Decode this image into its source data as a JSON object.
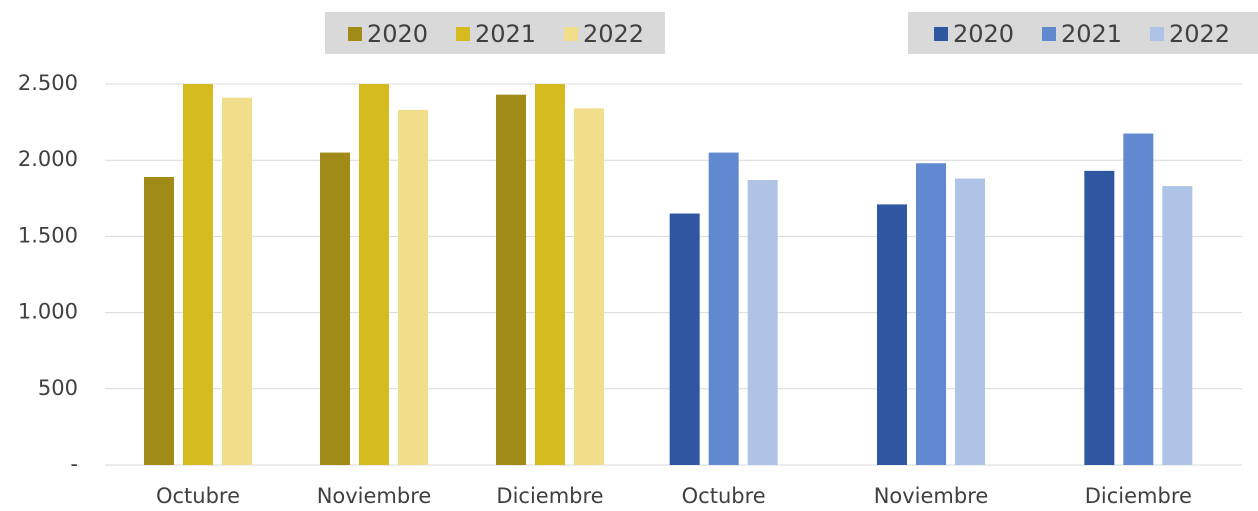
{
  "chart_data": [
    {
      "type": "bar",
      "categories": [
        "Octubre",
        "Noviembre",
        "Diciembre"
      ],
      "series": [
        {
          "name": "2020",
          "color": "#a08a18",
          "values": [
            1890,
            2050,
            2430
          ]
        },
        {
          "name": "2021",
          "color": "#d6bb20",
          "values": [
            2500,
            2500,
            2500
          ]
        },
        {
          "name": "2022",
          "color": "#f0de8a",
          "values": [
            2410,
            2330,
            2340
          ]
        }
      ],
      "ylim": [
        0,
        2500
      ],
      "yticks": [
        {
          "value": 0,
          "label": "-"
        },
        500,
        {
          "value": 1000,
          "label": "1.000"
        },
        {
          "value": 1500,
          "label": "1.500"
        },
        {
          "value": 2000,
          "label": "2.000"
        },
        {
          "value": 2500,
          "label": "2.500"
        }
      ],
      "grid": true
    },
    {
      "type": "bar",
      "categories": [
        "Octubre",
        "Noviembre",
        "Diciembre"
      ],
      "series": [
        {
          "name": "2020",
          "color": "#2f56a0",
          "values": [
            1650,
            1710,
            1930
          ]
        },
        {
          "name": "2021",
          "color": "#6189d0",
          "values": [
            2050,
            1980,
            2175
          ]
        },
        {
          "name": "2022",
          "color": "#aec3e6",
          "values": [
            1870,
            1880,
            1830
          ]
        }
      ],
      "ylim": [
        0,
        2500
      ],
      "grid": true
    }
  ]
}
